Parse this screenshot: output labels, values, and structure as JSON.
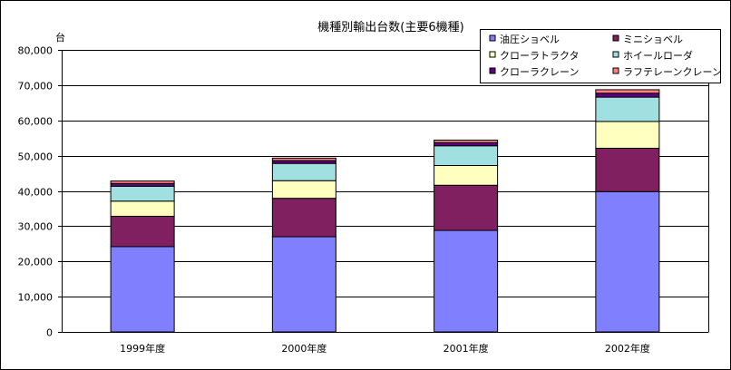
{
  "chart_data": {
    "type": "bar",
    "stacked": true,
    "title": "機種別輸出台数(主要6機種)",
    "ylabel": "台",
    "xlabel": "",
    "ylim": [
      0,
      80000
    ],
    "yticks": [
      "0",
      "10,000",
      "20,000",
      "30,000",
      "40,000",
      "50,000",
      "60,000",
      "70,000",
      "80,000"
    ],
    "categories": [
      "1999年度",
      "2000年度",
      "2001年度",
      "2002年度"
    ],
    "grid": true,
    "legend_position": "top-right",
    "series": [
      {
        "name": "油圧ショベル",
        "color": "#8080ff",
        "values": [
          24200,
          27000,
          28800,
          39800
        ]
      },
      {
        "name": "ミニショベル",
        "color": "#802060",
        "values": [
          8600,
          10900,
          12800,
          12300
        ]
      },
      {
        "name": "クローラトラクタ",
        "color": "#ffffc0",
        "values": [
          4300,
          5000,
          5600,
          7600
        ]
      },
      {
        "name": "ホイールローダ",
        "color": "#a0e0e0",
        "values": [
          4200,
          4900,
          5600,
          6900
        ]
      },
      {
        "name": "クローラクレーン",
        "color": "#600080",
        "values": [
          800,
          800,
          900,
          1100
        ]
      },
      {
        "name": "ラフテレーンクレーン",
        "color": "#ff8080",
        "values": [
          700,
          700,
          700,
          1000
        ]
      }
    ]
  }
}
